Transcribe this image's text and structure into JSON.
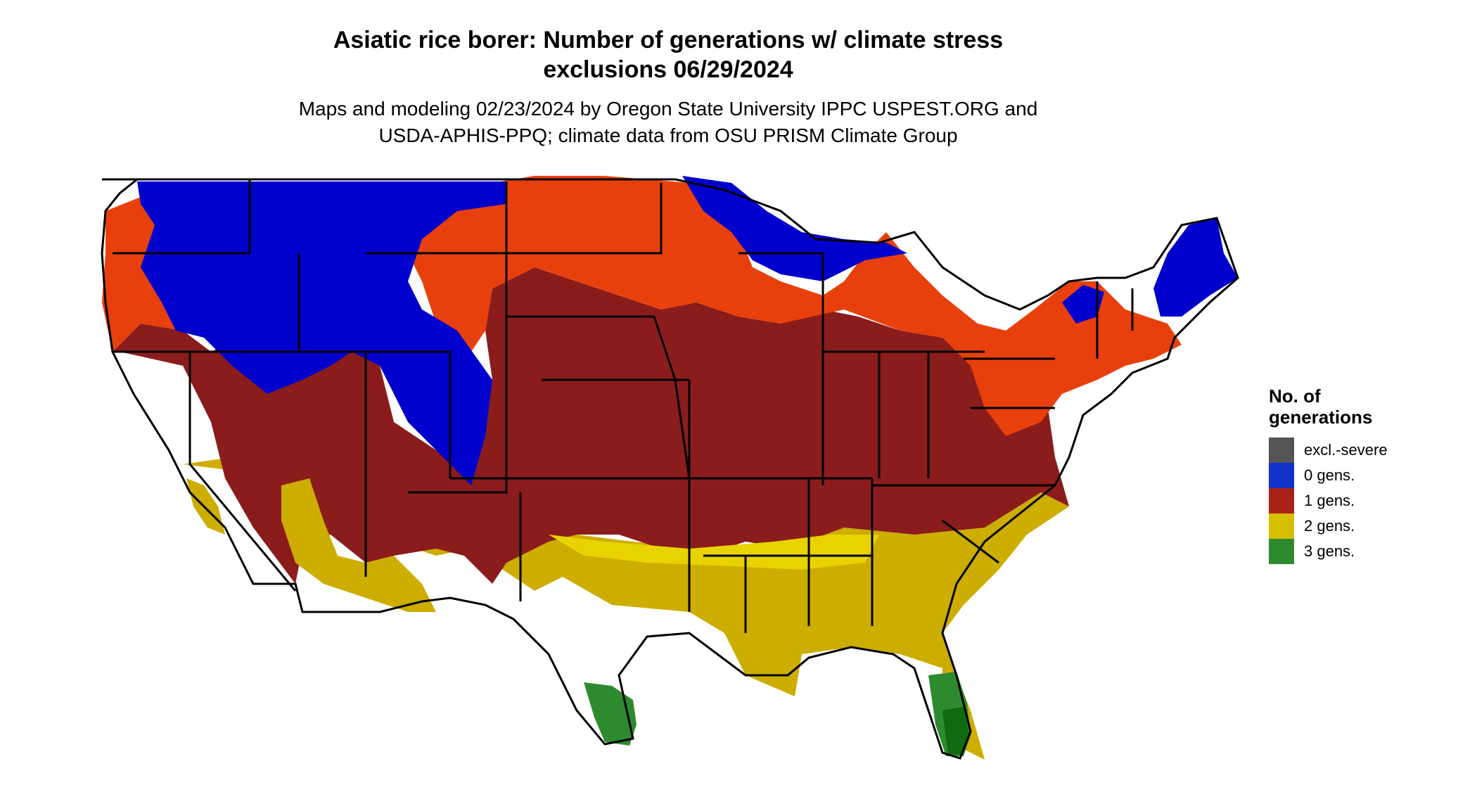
{
  "title": {
    "line1": "Asiatic rice borer: Number of generations w/ climate stress",
    "line2": "exclusions 06/29/2024"
  },
  "subtitle": {
    "line1": "Maps and modeling 02/23/2024 by Oregon State University IPPC USPEST.ORG and",
    "line2": "USDA-APHIS-PPQ; climate data from OSU PRISM Climate Group"
  },
  "legend": {
    "title_line1": "No. of",
    "title_line2": "generations",
    "items": [
      {
        "label": "excl.-severe",
        "color": "#555555"
      },
      {
        "label": "0 gens.",
        "color": "#1133cc"
      },
      {
        "label": "1 gens.",
        "color": "#a82116"
      },
      {
        "label": "2 gens.",
        "color": "#d6bf00"
      },
      {
        "label": "3 gens.",
        "color": "#2e8a2e"
      }
    ]
  },
  "map_colors": {
    "zero_gens": "#0000cc",
    "one_gen_orange": "#e8400c",
    "one_gen_red": "#8b1c1c",
    "one_gen_dark": "#7a1616",
    "two_gens": "#ccad00",
    "two_gens_light": "#e8d200",
    "three_gens": "#2e8a2e",
    "three_gens_dark": "#0f6a0f",
    "state_lines": "#000000"
  }
}
